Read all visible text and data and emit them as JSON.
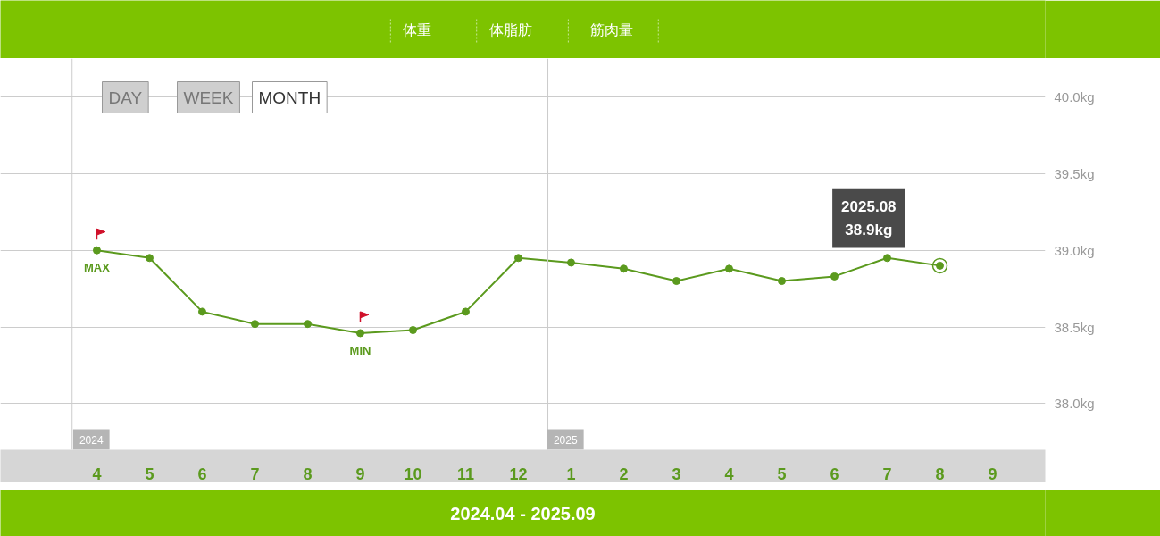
{
  "chart_data": {
    "type": "line",
    "categories": [
      "4",
      "5",
      "6",
      "7",
      "8",
      "9",
      "10",
      "11",
      "12",
      "1",
      "2",
      "3",
      "4",
      "5",
      "6",
      "7",
      "8",
      "9"
    ],
    "series": [
      {
        "color": "#5b9a1e",
        "values": [
          39.0,
          38.95,
          38.6,
          38.52,
          38.52,
          38.46,
          38.48,
          38.6,
          38.95,
          38.92,
          38.88,
          38.8,
          38.88,
          38.8,
          38.83,
          38.95,
          38.9,
          null
        ]
      }
    ],
    "marker": "circle",
    "ylim": [
      37.7,
      40.25
    ],
    "yticks": [
      {
        "value": 38.0,
        "label": "38.0kg"
      },
      {
        "value": 38.5,
        "label": "38.5kg"
      },
      {
        "value": 39.0,
        "label": "39.0kg"
      },
      {
        "value": 39.5,
        "label": "39.5kg"
      },
      {
        "value": 40.0,
        "label": "40.0kg"
      }
    ],
    "grid": "y",
    "annotations": [
      "体重",
      "体脂肪",
      "筋肉量",
      "DAY",
      "WEEK",
      "MONTH",
      "2024",
      "2025",
      "MAX",
      "MIN",
      "2025.08",
      "38.9kg",
      "2024.04 - 2025.09"
    ]
  }
}
